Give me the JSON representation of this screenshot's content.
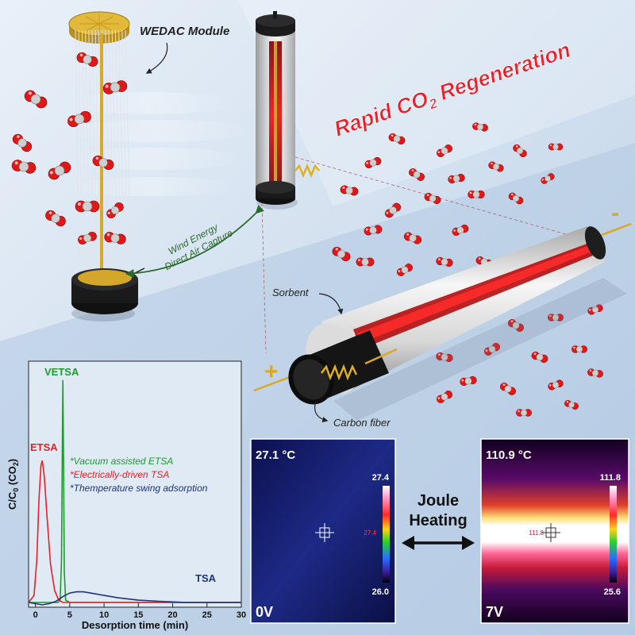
{
  "header": {
    "module_label": "WEDAC Module",
    "regen_pre": "Rapid CO",
    "regen_sub": "2",
    "regen_post": " Regeneration"
  },
  "capture": {
    "line1": "Wind Energy",
    "line2": "Direct Air Capture"
  },
  "fiber": {
    "sorbent_label": "Sorbent",
    "carbon_label": "Carbon fiber",
    "plus": "+",
    "minus": "-"
  },
  "colors": {
    "etsa": "#e8202a",
    "vetsa": "#1f9a2e",
    "tsa": "#20337a",
    "plot_bg": "#dfeaf4",
    "title_red": "#e8202a",
    "gold": "#c9a227"
  },
  "chart_data": {
    "type": "line",
    "xlabel": "Desorption time (min)",
    "ylabel_pre": "C/C",
    "ylabel_sub0": "0",
    "ylabel_mid": " (CO",
    "ylabel_sub2": "2",
    "ylabel_post": ")",
    "xlim": [
      -1,
      30
    ],
    "ylim": [
      0,
      1.0
    ],
    "xticks": [
      0,
      5,
      10,
      15,
      20,
      25,
      30
    ],
    "series": [
      {
        "name": "VETSA",
        "color": "#1f9a2e",
        "x": [
          -1,
          2,
          3.3,
          3.6,
          3.8,
          3.9,
          4.0,
          4.1,
          4.2,
          4.4,
          5,
          6,
          10,
          30
        ],
        "y": [
          0.02,
          0.02,
          0.02,
          0.03,
          0.2,
          0.6,
          0.96,
          0.6,
          0.15,
          0.03,
          0.02,
          0.02,
          0.02,
          0.02
        ]
      },
      {
        "name": "ETSA",
        "color": "#e8202a",
        "x": [
          -1,
          -0.2,
          0.2,
          0.5,
          0.8,
          1.0,
          1.3,
          1.7,
          2.2,
          2.8,
          3.4,
          4,
          30
        ],
        "y": [
          0.02,
          0.05,
          0.2,
          0.45,
          0.6,
          0.62,
          0.55,
          0.38,
          0.18,
          0.07,
          0.03,
          0.02,
          0.02
        ]
      },
      {
        "name": "TSA",
        "color": "#20337a",
        "x": [
          -1,
          0,
          1,
          2,
          3,
          4,
          5,
          6,
          7,
          8,
          10,
          12,
          15,
          18,
          22,
          26,
          30
        ],
        "y": [
          0.02,
          0.015,
          0.01,
          0.015,
          0.025,
          0.045,
          0.06,
          0.065,
          0.065,
          0.06,
          0.05,
          0.04,
          0.03,
          0.025,
          0.02,
          0.02,
          0.02
        ]
      }
    ],
    "legend": [
      {
        "text": "*Vacuum assisted ETSA",
        "color": "#1f9a2e"
      },
      {
        "text": "*Electrically-driven TSA",
        "color": "#e8202a"
      },
      {
        "text": "*Themperature swing adsorption",
        "color": "#20337a"
      }
    ]
  },
  "thermal": {
    "left": {
      "temp": "27.1 °C",
      "scale_max": "27.4",
      "scale_min": "26.0",
      "spot": "27.4",
      "voltage": "0V"
    },
    "right": {
      "temp": "110.9 °C",
      "scale_max": "111.8",
      "scale_min": "25.6",
      "spot": "111.8",
      "voltage": "7V"
    },
    "joule_line1": "Joule",
    "joule_line2": "Heating"
  }
}
